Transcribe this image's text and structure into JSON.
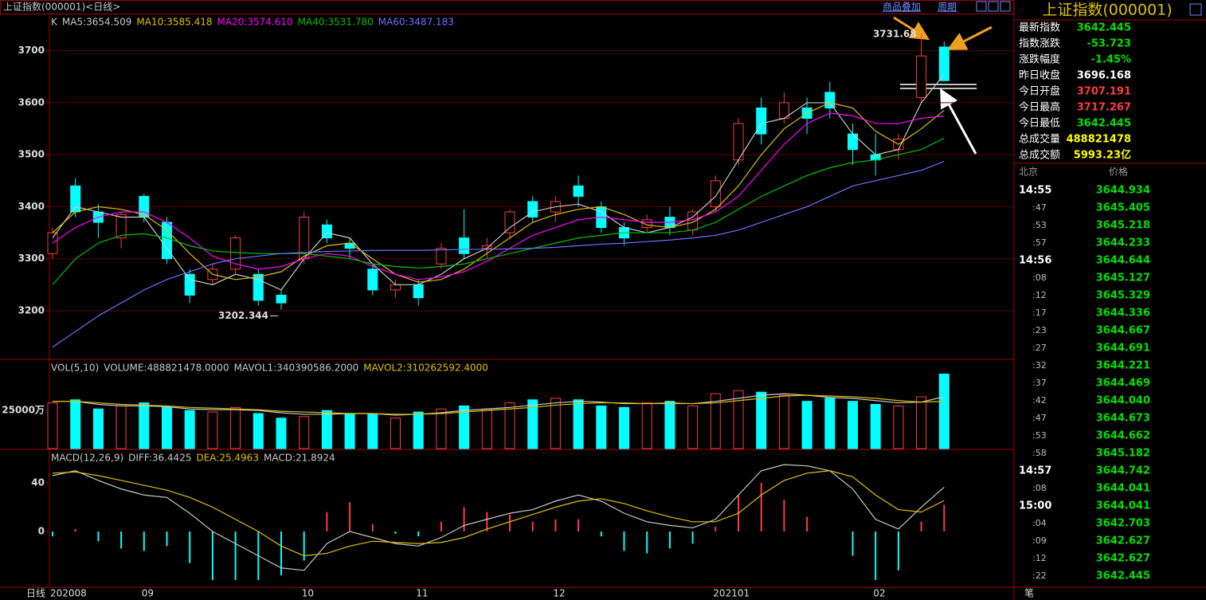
{
  "toolbar": {
    "title": "上证指数(000001)<日线>",
    "links": [
      "商品叠加",
      "周期"
    ]
  },
  "chart_data": [
    {
      "type": "candlestick",
      "legend_prefix": "K",
      "open": [
        3310,
        3440,
        3390,
        3340,
        3420,
        3370,
        3270,
        3260,
        3280,
        3270,
        3230,
        3300,
        3365,
        3330,
        3280,
        3240,
        3250,
        3290,
        3340,
        3320,
        3350,
        3410,
        3390,
        3440,
        3400,
        3360,
        3360,
        3380,
        3355,
        3400,
        3490,
        3590,
        3570,
        3590,
        3620,
        3540,
        3500,
        3510,
        3610,
        3707.191
      ],
      "high": [
        3360,
        3455,
        3405,
        3390,
        3425,
        3380,
        3280,
        3290,
        3345,
        3280,
        3240,
        3390,
        3375,
        3340,
        3290,
        3260,
        3260,
        3330,
        3395,
        3340,
        3395,
        3420,
        3420,
        3460,
        3410,
        3370,
        3385,
        3400,
        3395,
        3460,
        3570,
        3610,
        3620,
        3610,
        3640,
        3560,
        3540,
        3540,
        3731.68,
        3717.267
      ],
      "low": [
        3300,
        3380,
        3340,
        3320,
        3370,
        3290,
        3215,
        3250,
        3270,
        3210,
        3202.344,
        3290,
        3330,
        3300,
        3230,
        3225,
        3210,
        3280,
        3300,
        3300,
        3340,
        3370,
        3370,
        3400,
        3350,
        3325,
        3350,
        3345,
        3345,
        3390,
        3480,
        3520,
        3560,
        3540,
        3570,
        3480,
        3460,
        3490,
        3600,
        3642.445
      ],
      "close": [
        3350,
        3390,
        3370,
        3385,
        3380,
        3300,
        3230,
        3280,
        3340,
        3220,
        3215,
        3380,
        3340,
        3320,
        3240,
        3250,
        3225,
        3320,
        3310,
        3325,
        3390,
        3380,
        3410,
        3420,
        3360,
        3340,
        3375,
        3360,
        3390,
        3450,
        3560,
        3540,
        3600,
        3570,
        3590,
        3510,
        3490,
        3530,
        3690,
        3642.445
      ],
      "up_color": "#ff3c3c",
      "down_color": "#00ffff",
      "series": [
        {
          "name": "MA5:3654.509",
          "color": "#c8c8c8",
          "values": [
            3340,
            3400,
            3390,
            3380,
            3380,
            3320,
            3260,
            3250,
            3270,
            3260,
            3240,
            3300,
            3350,
            3340,
            3290,
            3250,
            3250,
            3270,
            3300,
            3320,
            3360,
            3390,
            3400,
            3405,
            3390,
            3360,
            3350,
            3360,
            3380,
            3420,
            3490,
            3560,
            3570,
            3600,
            3600,
            3540,
            3500,
            3510,
            3600,
            3654.509
          ]
        },
        {
          "name": "MA10:3585.418",
          "color": "#e0c000",
          "values": [
            3350,
            3390,
            3400,
            3395,
            3385,
            3355,
            3310,
            3270,
            3260,
            3265,
            3275,
            3305,
            3325,
            3330,
            3300,
            3270,
            3255,
            3260,
            3280,
            3310,
            3340,
            3370,
            3385,
            3395,
            3400,
            3385,
            3365,
            3360,
            3370,
            3395,
            3440,
            3500,
            3550,
            3580,
            3600,
            3590,
            3545,
            3520,
            3550,
            3585.418
          ]
        },
        {
          "name": "MA20:3574.610",
          "color": "#ff00ff",
          "values": [
            3330,
            3360,
            3380,
            3390,
            3390,
            3370,
            3340,
            3305,
            3290,
            3280,
            3285,
            3300,
            3310,
            3305,
            3285,
            3270,
            3260,
            3265,
            3275,
            3295,
            3320,
            3345,
            3360,
            3375,
            3380,
            3375,
            3370,
            3370,
            3375,
            3390,
            3420,
            3470,
            3520,
            3560,
            3580,
            3575,
            3560,
            3560,
            3570,
            3574.61
          ]
        },
        {
          "name": "MA40:3531.780",
          "color": "#00c000",
          "values": [
            3250,
            3300,
            3330,
            3345,
            3348,
            3340,
            3325,
            3315,
            3312,
            3310,
            3310,
            3310,
            3305,
            3300,
            3290,
            3285,
            3282,
            3285,
            3290,
            3300,
            3310,
            3320,
            3330,
            3340,
            3345,
            3350,
            3350,
            3350,
            3355,
            3370,
            3395,
            3420,
            3440,
            3460,
            3475,
            3485,
            3490,
            3500,
            3510,
            3531.78
          ]
        },
        {
          "name": "MA60:3487.183",
          "color": "#7070ff",
          "values": [
            3130,
            3160,
            3190,
            3215,
            3240,
            3260,
            3275,
            3290,
            3300,
            3305,
            3310,
            3312,
            3314,
            3315,
            3316,
            3316,
            3316,
            3317,
            3318,
            3318,
            3319,
            3320,
            3322,
            3325,
            3328,
            3330,
            3333,
            3336,
            3340,
            3345,
            3355,
            3370,
            3385,
            3400,
            3420,
            3440,
            3450,
            3460,
            3470,
            3487.183
          ]
        }
      ],
      "ylim": [
        3108,
        3770
      ],
      "yticks": [
        3200,
        3300,
        3400,
        3500,
        3600,
        3700
      ],
      "grid": true,
      "annotations": [
        {
          "value": 3731.68,
          "index": 38
        },
        {
          "value": 3202.344,
          "index": 10
        }
      ]
    },
    {
      "type": "bar",
      "legend_prefix": "VOL(5,10)",
      "volume_label": "VOLUME:488821478.0000",
      "values": [
        30000,
        32000,
        26000,
        28000,
        30000,
        27000,
        25000,
        24000,
        27000,
        23000,
        20000,
        21000,
        25000,
        23000,
        23000,
        20000,
        24000,
        26000,
        28000,
        26000,
        30000,
        32000,
        33000,
        32000,
        28000,
        27000,
        30000,
        31000,
        28000,
        36000,
        38000,
        37000,
        35000,
        31000,
        33000,
        31000,
        29000,
        28000,
        34000,
        48882
      ],
      "series": [
        {
          "name": "MAVOL1:340390586.2000",
          "color": "#c8c8c8",
          "values": [
            31000,
            31000,
            29000,
            28000,
            28000,
            27500,
            26000,
            25500,
            25500,
            25000,
            23500,
            22500,
            22500,
            23000,
            23000,
            22000,
            22500,
            23500,
            25000,
            26000,
            27000,
            28500,
            30000,
            31000,
            30500,
            29500,
            29500,
            30000,
            29500,
            31000,
            33000,
            35000,
            36000,
            35000,
            33500,
            33000,
            31500,
            30000,
            30500,
            34039
          ]
        },
        {
          "name": "MAVOL2:310262592.4000",
          "color": "#e0c000",
          "values": [
            31000,
            31000,
            30000,
            29000,
            28500,
            28000,
            27000,
            26500,
            26000,
            25500,
            24500,
            24000,
            23500,
            23000,
            23000,
            22500,
            22500,
            23000,
            24000,
            25000,
            26000,
            27000,
            28500,
            29500,
            30000,
            30000,
            29500,
            29500,
            29500,
            30000,
            31500,
            33000,
            34500,
            35000,
            34500,
            34000,
            33000,
            31500,
            30500,
            31026
          ]
        }
      ],
      "ylim": [
        0,
        58000
      ],
      "yticks": [
        {
          "value": 25000,
          "label": "25000万"
        }
      ],
      "grid": false
    },
    {
      "type": "macd",
      "legend_prefix": "MACD(12,26,9)",
      "series": [
        {
          "name": "DIFF:36.4425",
          "color": "#c8c8c8",
          "values": [
            46,
            50,
            42,
            35,
            30,
            28,
            15,
            0,
            -10,
            -20,
            -30,
            -32,
            -10,
            0,
            -5,
            -10,
            -12,
            -5,
            5,
            10,
            15,
            18,
            25,
            30,
            25,
            15,
            8,
            5,
            3,
            10,
            30,
            50,
            55,
            54,
            50,
            35,
            10,
            2,
            20,
            36.4425
          ]
        },
        {
          "name": "DEA:25.4963",
          "color": "#e0c000",
          "values": [
            48,
            49,
            46,
            42,
            38,
            34,
            28,
            20,
            10,
            0,
            -12,
            -20,
            -18,
            -12,
            -8,
            -9,
            -10,
            -9,
            -5,
            2,
            8,
            14,
            20,
            25,
            27,
            23,
            17,
            12,
            8,
            8,
            15,
            30,
            42,
            48,
            50,
            45,
            30,
            18,
            16,
            25.4963
          ]
        }
      ],
      "histogram": {
        "name": "MACD:21.8924",
        "values": [
          -4,
          2,
          -8,
          -14,
          -16,
          -12,
          -26,
          -40,
          -40,
          -40,
          -36,
          -24,
          16,
          24,
          6,
          -2,
          -4,
          8,
          20,
          16,
          14,
          8,
          10,
          10,
          -4,
          -16,
          -18,
          -14,
          -10,
          4,
          30,
          40,
          26,
          12,
          0,
          -20,
          -40,
          -32,
          8,
          21.8924
        ]
      },
      "ylim": [
        -44.6,
        66.9
      ],
      "yticks": [
        0,
        40
      ],
      "grid": false,
      "period_label": "日线",
      "categories": [
        "202008",
        null,
        null,
        null,
        "09",
        null,
        null,
        null,
        null,
        null,
        null,
        "10",
        null,
        null,
        null,
        null,
        "11",
        null,
        null,
        null,
        null,
        null,
        "12",
        null,
        null,
        null,
        null,
        null,
        null,
        "202101",
        null,
        null,
        null,
        null,
        null,
        null,
        "02",
        null,
        null,
        null
      ]
    }
  ],
  "quote": {
    "title": "上证指数(000001)",
    "rows": [
      [
        "最新指数",
        "3642.445"
      ],
      [
        "指数涨跌",
        "-53.723"
      ],
      [
        "涨跌幅度",
        "-1.45%"
      ],
      [
        "昨日收盘",
        "3696.168"
      ],
      [
        "今日开盘",
        "3707.191"
      ],
      [
        "今日最高",
        "3717.267"
      ],
      [
        "今日最低",
        "3642.445"
      ],
      [
        "总成交量",
        "488821478"
      ],
      [
        "总成交额",
        "5993.23亿"
      ]
    ]
  },
  "ticks_panel": {
    "headers": [
      "北京",
      "价格"
    ],
    "rows": [
      [
        "14:55",
        "3644.934"
      ],
      [
        ":47",
        "3645.405"
      ],
      [
        ":53",
        "3645.218"
      ],
      [
        ":57",
        "3644.233"
      ],
      [
        "14:56",
        "3644.644"
      ],
      [
        ":08",
        "3645.127"
      ],
      [
        ":12",
        "3645.329"
      ],
      [
        ":17",
        "3644.336"
      ],
      [
        ":23",
        "3644.667"
      ],
      [
        ":27",
        "3644.691"
      ],
      [
        ":32",
        "3644.221"
      ],
      [
        ":37",
        "3644.469"
      ],
      [
        ":42",
        "3644.040"
      ],
      [
        ":47",
        "3644.673"
      ],
      [
        ":53",
        "3644.662"
      ],
      [
        ":58",
        "3645.182"
      ],
      [
        "14:57",
        "3644.742"
      ],
      [
        ":08",
        "3644.041"
      ],
      [
        "15:00",
        "3644.041"
      ],
      [
        ":04",
        "3642.703"
      ],
      [
        ":09",
        "3642.627"
      ],
      [
        ":12",
        "3642.627"
      ],
      [
        ":22",
        "3642.445"
      ]
    ],
    "footer": "笔"
  }
}
